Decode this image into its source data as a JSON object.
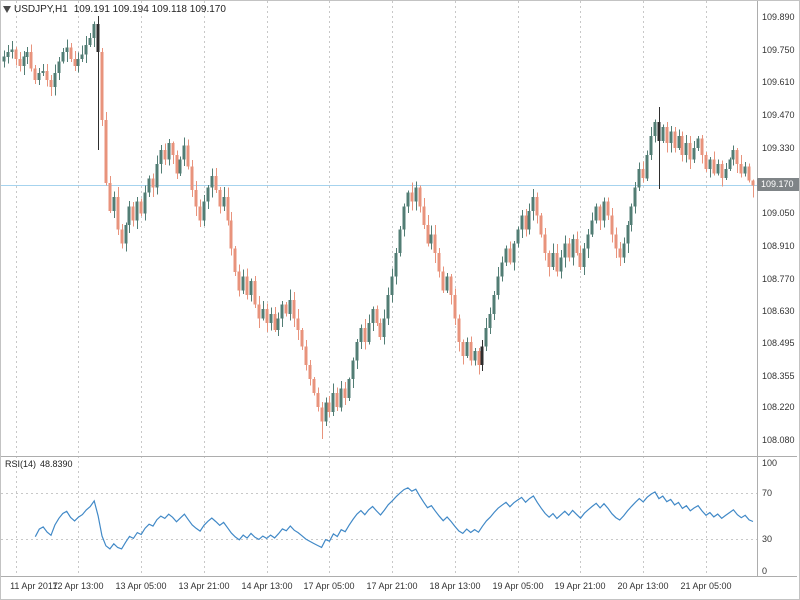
{
  "header": {
    "symbol": "USDJPY,H1",
    "ohlc": "109.191 109.194 109.118 109.170"
  },
  "rsi": {
    "label": "RSI(14)",
    "value": "48.8390"
  },
  "price_axis": {
    "current_price": "109.170",
    "ticks": [
      "109.890",
      "109.750",
      "109.610",
      "109.470",
      "109.330",
      "109.050",
      "108.910",
      "108.770",
      "108.630",
      "108.495",
      "108.355",
      "108.220",
      "108.080"
    ]
  },
  "time_axis": {
    "labels": [
      {
        "text": "11 Apr 2017",
        "bar": 3
      },
      {
        "text": "12 Apr 13:00",
        "bar": 19
      },
      {
        "text": "13 Apr 05:00",
        "bar": 35
      },
      {
        "text": "13 Apr 21:00",
        "bar": 51
      },
      {
        "text": "14 Apr 13:00",
        "bar": 67
      },
      {
        "text": "17 Apr 05:00",
        "bar": 83
      },
      {
        "text": "17 Apr 21:00",
        "bar": 99
      },
      {
        "text": "18 Apr 13:00",
        "bar": 115
      },
      {
        "text": "19 Apr 05:00",
        "bar": 131
      },
      {
        "text": "19 Apr 21:00",
        "bar": 147
      },
      {
        "text": "20 Apr 13:00",
        "bar": 163
      },
      {
        "text": "21 Apr 05:00",
        "bar": 179
      }
    ]
  },
  "colors": {
    "bull": "#527d74",
    "bear": "#e8937c",
    "doji": "#2e2e2e",
    "grid": "#c8c8c8",
    "separator": "#adadad",
    "rsi_line": "#4189c7",
    "price_line": "#a6d3ee",
    "badge_bg": "#7f8487",
    "axis_text": "#333333"
  },
  "chart_data": [
    {
      "type": "candlestick",
      "title": "USDJPY,H1",
      "symbol": "USDJPY",
      "timeframe": "H1",
      "ylabel": "price",
      "ylim": [
        108.02,
        109.95
      ],
      "y_min": 108.02,
      "y_max": 109.95,
      "grid": "vertical-dashed",
      "first_open": 109.7,
      "closes": [
        109.72,
        109.74,
        109.75,
        109.71,
        109.68,
        109.72,
        109.74,
        109.67,
        109.62,
        109.65,
        109.66,
        109.62,
        109.59,
        109.65,
        109.7,
        109.74,
        109.76,
        109.71,
        109.68,
        109.71,
        109.73,
        109.77,
        109.8,
        109.86,
        109.74,
        109.45,
        109.18,
        109.06,
        109.12,
        108.98,
        108.92,
        109.0,
        109.08,
        109.02,
        109.1,
        109.05,
        109.14,
        109.2,
        109.16,
        109.26,
        109.32,
        109.28,
        109.35,
        109.3,
        109.22,
        109.28,
        109.34,
        109.25,
        109.15,
        109.08,
        109.02,
        109.1,
        109.16,
        109.21,
        109.15,
        109.08,
        109.12,
        109.02,
        108.9,
        108.8,
        108.72,
        108.78,
        108.7,
        108.76,
        108.66,
        108.6,
        108.64,
        108.58,
        108.62,
        108.55,
        108.6,
        108.66,
        108.62,
        108.68,
        108.6,
        108.55,
        108.48,
        108.4,
        108.34,
        108.28,
        108.22,
        108.16,
        108.24,
        108.2,
        108.28,
        108.22,
        108.3,
        108.26,
        108.34,
        108.42,
        108.5,
        108.56,
        108.5,
        108.58,
        108.64,
        108.58,
        108.52,
        108.6,
        108.7,
        108.78,
        108.88,
        108.98,
        109.08,
        109.14,
        109.1,
        109.16,
        109.08,
        109.0,
        108.92,
        108.96,
        108.88,
        108.8,
        108.72,
        108.78,
        108.7,
        108.6,
        108.5,
        108.44,
        108.5,
        108.42,
        108.46,
        108.4,
        108.48,
        108.56,
        108.62,
        108.7,
        108.78,
        108.84,
        108.9,
        108.84,
        108.92,
        108.98,
        109.04,
        108.98,
        109.06,
        109.12,
        109.04,
        108.96,
        108.88,
        108.82,
        108.88,
        108.8,
        108.86,
        108.92,
        108.86,
        108.94,
        108.88,
        108.82,
        108.9,
        108.96,
        109.02,
        109.08,
        109.02,
        109.1,
        109.04,
        108.96,
        108.9,
        108.86,
        108.92,
        109.0,
        109.08,
        109.16,
        109.24,
        109.2,
        109.3,
        109.38,
        109.44,
        109.36,
        109.42,
        109.35,
        109.4,
        109.33,
        109.38,
        109.3,
        109.35,
        109.28,
        109.33,
        109.37,
        109.3,
        109.24,
        109.28,
        109.22,
        109.26,
        109.2,
        109.24,
        109.28,
        109.32,
        109.26,
        109.22,
        109.25,
        109.191,
        109.17
      ],
      "wick_seed": 11,
      "wick_max": 0.035,
      "overrides": {
        "24": {
          "h": 109.895,
          "l": 109.32
        },
        "81": {
          "l": 108.085
        },
        "167": {
          "h": 109.505,
          "l": 109.155
        },
        "191": {
          "o": 109.191,
          "h": 109.194,
          "l": 109.118,
          "c": 109.17
        }
      },
      "black_bars": [
        24,
        122,
        167
      ],
      "current_price": 109.17
    },
    {
      "type": "line",
      "name": "RSI(14)",
      "period": 14,
      "current_value": 48.839,
      "ylim": [
        0,
        100
      ],
      "levels": [
        70,
        30
      ],
      "ticks": [
        "100",
        "70",
        "30",
        "0"
      ],
      "derived_from": "closes"
    }
  ]
}
